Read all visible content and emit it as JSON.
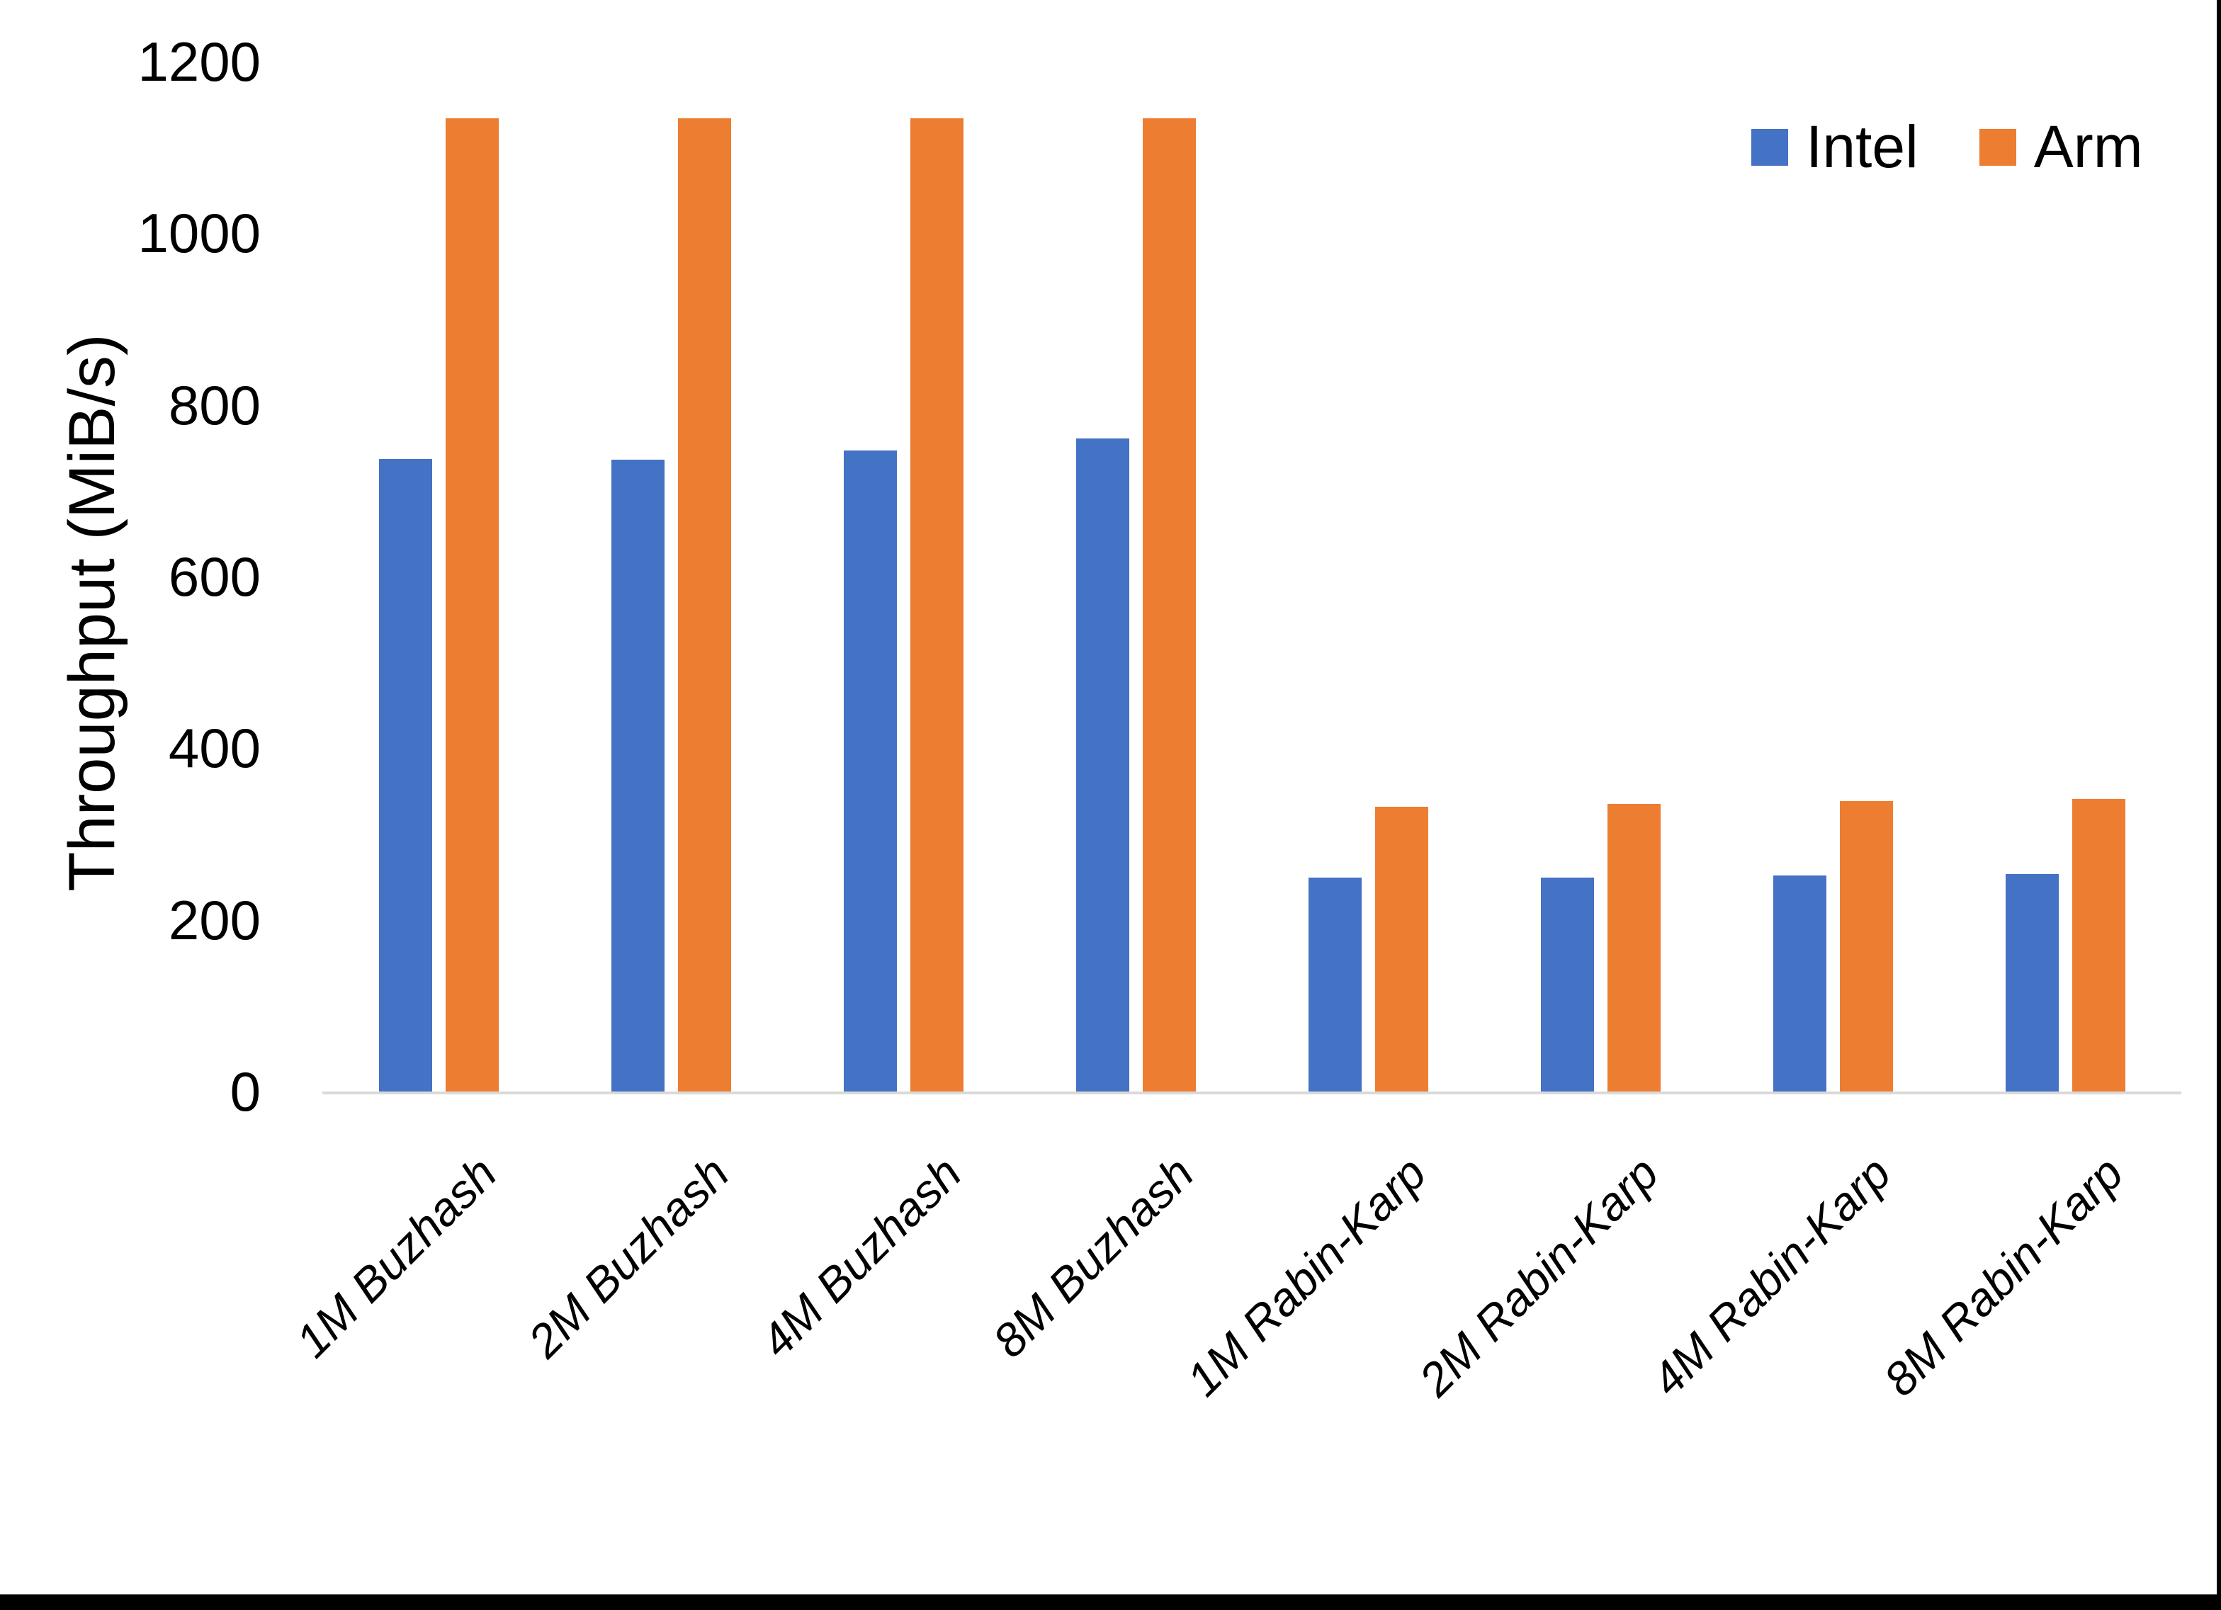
{
  "chart_data": {
    "type": "bar",
    "title": "",
    "xlabel": "",
    "ylabel": "Throughput (MiB/s)",
    "ylim": [
      0,
      1200
    ],
    "yticks": [
      0,
      200,
      400,
      600,
      800,
      1000,
      1200
    ],
    "grid": false,
    "legend_position": "top-right",
    "axis_line_color": "#D9D9D9",
    "categories": [
      "1M Buzhash",
      "2M Buzhash",
      "4M Buzhash",
      "8M Buzhash",
      "1M Rabin-Karp",
      "2M Rabin-Karp",
      "4M Rabin-Karp",
      "8M Rabin-Karp"
    ],
    "series": [
      {
        "name": "Intel",
        "color": "#4472C4",
        "values": [
          737,
          736,
          747,
          761,
          249,
          249,
          252,
          253
        ]
      },
      {
        "name": "Arm",
        "color": "#ED7D31",
        "values": [
          1134,
          1134,
          1134,
          1134,
          332,
          335,
          338,
          341
        ]
      }
    ]
  }
}
